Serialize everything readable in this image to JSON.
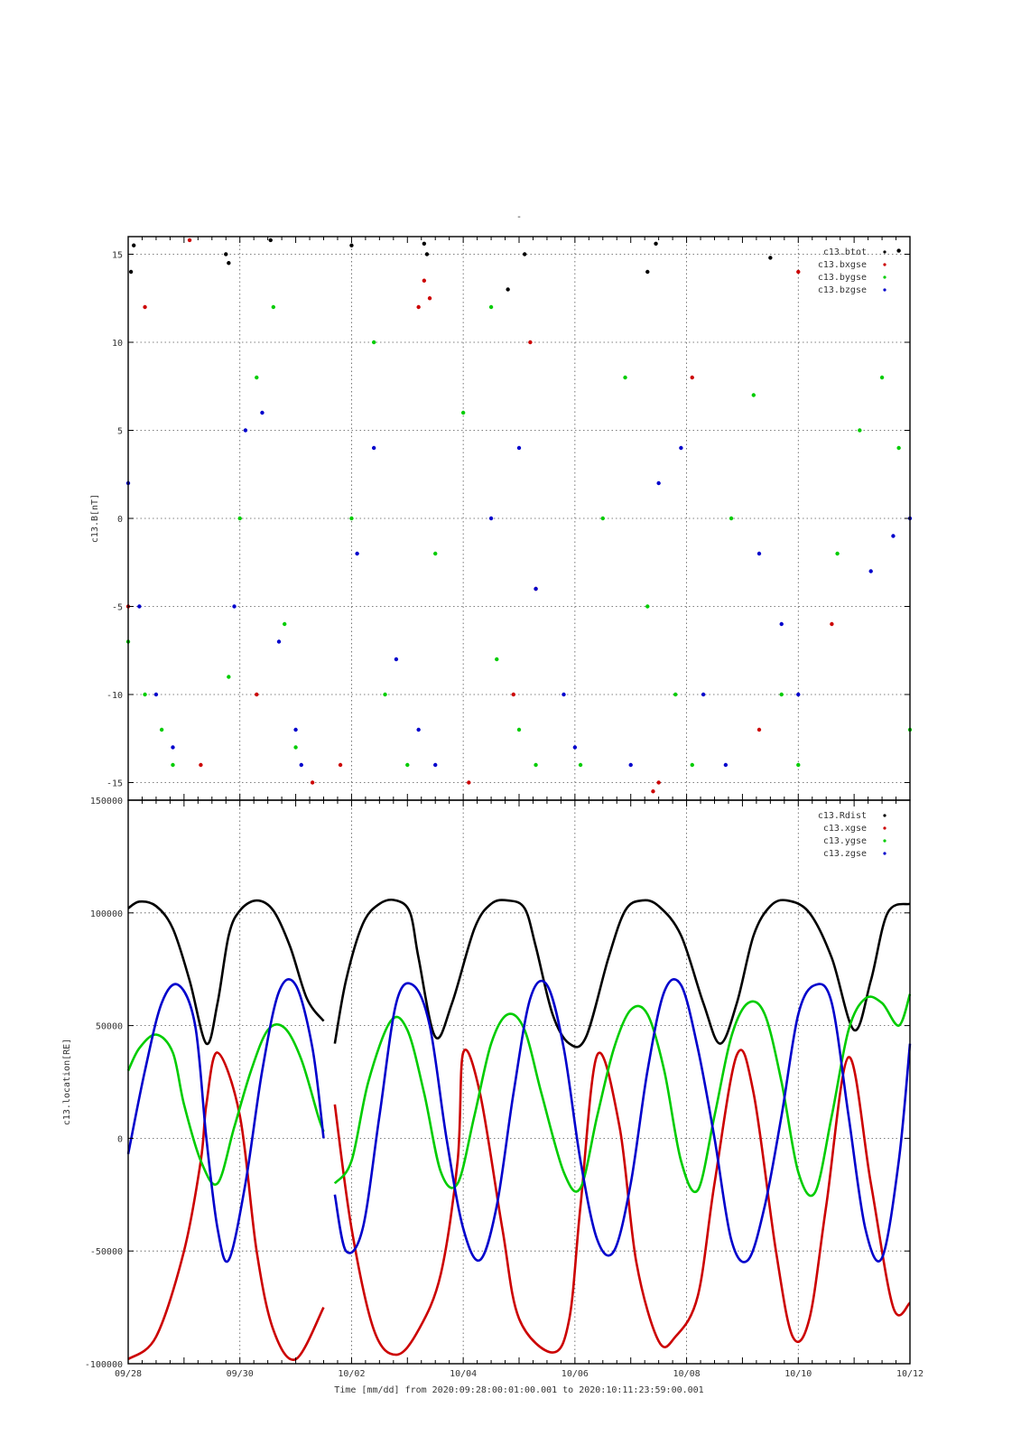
{
  "figure": {
    "title": "-",
    "xlabel": "Time [mm/dd]  from 2020:09:28:00:01:00.001  to  2020:10:11:23:59:00.001"
  },
  "colors": {
    "black": "#000000",
    "red": "#cc0000",
    "green": "#00cc00",
    "blue": "#0000cc"
  },
  "chart_data": [
    {
      "type": "scatter",
      "ylabel": "c13.B[nT]",
      "ylim": [
        -16,
        16
      ],
      "yticks": [
        -15,
        -10,
        -5,
        0,
        5,
        10,
        15
      ],
      "ytick_labels": [
        "-15",
        "-10",
        "-5",
        "0",
        "5",
        "10",
        "15"
      ],
      "x_range_days": [
        0,
        14
      ],
      "x_ticks": [
        "09/28",
        "09/30",
        "10/02",
        "10/04",
        "10/06",
        "10/08",
        "10/10",
        "10/12"
      ],
      "grid": true,
      "legend_position": "top-right",
      "series": [
        {
          "name": "c13.btot",
          "color": "#000000",
          "points": [
            [
              0.05,
              14
            ],
            [
              0.1,
              15.5
            ],
            [
              1.75,
              15
            ],
            [
              1.8,
              14.5
            ],
            [
              2.55,
              15.8
            ],
            [
              4.0,
              15.5
            ],
            [
              6.8,
              13
            ],
            [
              7.1,
              15
            ],
            [
              9.3,
              14
            ],
            [
              9.45,
              15.6
            ],
            [
              11.5,
              14.8
            ],
            [
              13.8,
              15.2
            ],
            [
              5.3,
              15.6
            ],
            [
              5.35,
              15
            ]
          ]
        },
        {
          "name": "c13.bxgse",
          "color": "#cc0000",
          "points": [
            [
              0.0,
              -5
            ],
            [
              0.3,
              12
            ],
            [
              1.1,
              15.8
            ],
            [
              1.3,
              -14
            ],
            [
              2.3,
              -10
            ],
            [
              3.3,
              -15
            ],
            [
              3.8,
              -14
            ],
            [
              5.2,
              12
            ],
            [
              5.3,
              13.5
            ],
            [
              5.4,
              12.5
            ],
            [
              6.1,
              -15
            ],
            [
              6.9,
              -10
            ],
            [
              7.2,
              10
            ],
            [
              7.3,
              -4
            ],
            [
              9.4,
              -15.5
            ],
            [
              9.5,
              -15
            ],
            [
              10.1,
              8
            ],
            [
              11.3,
              -12
            ],
            [
              12.0,
              14
            ],
            [
              12.6,
              -6
            ]
          ]
        },
        {
          "name": "c13.bygse",
          "color": "#00cc00",
          "points": [
            [
              0.0,
              -7
            ],
            [
              0.3,
              -10
            ],
            [
              0.6,
              -12
            ],
            [
              0.8,
              -14
            ],
            [
              1.8,
              -9
            ],
            [
              2.0,
              0
            ],
            [
              2.3,
              8
            ],
            [
              2.6,
              12
            ],
            [
              2.8,
              -6
            ],
            [
              3.0,
              -13
            ],
            [
              4.0,
              0
            ],
            [
              4.4,
              10
            ],
            [
              4.6,
              -10
            ],
            [
              5.0,
              -14
            ],
            [
              5.5,
              -2
            ],
            [
              6.0,
              6
            ],
            [
              6.5,
              12
            ],
            [
              6.6,
              -8
            ],
            [
              7.0,
              -12
            ],
            [
              7.3,
              -14
            ],
            [
              8.1,
              -14
            ],
            [
              8.5,
              0
            ],
            [
              8.9,
              8
            ],
            [
              9.3,
              -5
            ],
            [
              9.8,
              -10
            ],
            [
              10.1,
              -14
            ],
            [
              10.8,
              0
            ],
            [
              11.2,
              7
            ],
            [
              11.7,
              -10
            ],
            [
              12.0,
              -14
            ],
            [
              12.7,
              -2
            ],
            [
              13.1,
              5
            ],
            [
              13.5,
              8
            ],
            [
              13.8,
              4
            ],
            [
              14.0,
              -12
            ]
          ]
        },
        {
          "name": "c13.bzgse",
          "color": "#0000cc",
          "points": [
            [
              0.0,
              2
            ],
            [
              0.2,
              -5
            ],
            [
              0.5,
              -10
            ],
            [
              0.8,
              -13
            ],
            [
              1.9,
              -5
            ],
            [
              2.1,
              5
            ],
            [
              2.4,
              6
            ],
            [
              2.7,
              -7
            ],
            [
              3.0,
              -12
            ],
            [
              3.1,
              -14
            ],
            [
              4.1,
              -2
            ],
            [
              4.4,
              4
            ],
            [
              4.8,
              -8
            ],
            [
              5.2,
              -12
            ],
            [
              5.5,
              -14
            ],
            [
              6.5,
              0
            ],
            [
              7.0,
              4
            ],
            [
              7.3,
              -4
            ],
            [
              7.8,
              -10
            ],
            [
              8.0,
              -13
            ],
            [
              9.0,
              -14
            ],
            [
              9.5,
              2
            ],
            [
              9.9,
              4
            ],
            [
              10.3,
              -10
            ],
            [
              10.7,
              -14
            ],
            [
              11.3,
              -2
            ],
            [
              11.7,
              -6
            ],
            [
              12.0,
              -10
            ],
            [
              13.3,
              -3
            ],
            [
              13.7,
              -1
            ],
            [
              14.0,
              0
            ]
          ]
        }
      ]
    },
    {
      "type": "line",
      "ylabel": "c13.location[RE]",
      "ylim": [
        -100000,
        150000
      ],
      "yticks": [
        -100000,
        -50000,
        0,
        50000,
        100000,
        150000
      ],
      "ytick_labels": [
        "-100000",
        "-50000",
        "0",
        "50000",
        "100000",
        "150000"
      ],
      "x_range_days": [
        0,
        14
      ],
      "x_ticks": [
        "09/28",
        "09/30",
        "10/02",
        "10/04",
        "10/06",
        "10/08",
        "10/10",
        "10/12"
      ],
      "grid": true,
      "legend_position": "top-right",
      "data_gap_days": [
        3.5,
        3.7
      ],
      "series": [
        {
          "name": "c13.Rdist",
          "color": "#000000",
          "x": [
            0,
            0.2,
            0.5,
            0.8,
            1.1,
            1.4,
            1.6,
            1.8,
            2.0,
            2.3,
            2.6,
            2.9,
            3.2,
            3.5,
            3.7,
            3.9,
            4.2,
            4.5,
            4.8,
            5.05,
            5.2,
            5.5,
            5.8,
            6.2,
            6.5,
            6.8,
            7.1,
            7.3,
            7.6,
            7.9,
            8.2,
            8.6,
            8.9,
            9.2,
            9.5,
            9.9,
            10.3,
            10.6,
            10.9,
            11.2,
            11.5,
            11.8,
            12.2,
            12.6,
            13.0,
            13.3,
            13.6,
            14.0
          ],
          "y": [
            102000,
            105000,
            103000,
            93000,
            70000,
            42000,
            60000,
            90000,
            101000,
            105500,
            101000,
            85000,
            62000,
            52000,
            42000,
            70000,
            95000,
            104000,
            105500,
            100000,
            80000,
            45000,
            60000,
            93000,
            104000,
            105500,
            102000,
            85000,
            55000,
            42000,
            45000,
            80000,
            101000,
            105500,
            103000,
            90000,
            60000,
            42000,
            60000,
            90000,
            103000,
            105500,
            100000,
            80000,
            48000,
            70000,
            100000,
            104000
          ]
        },
        {
          "name": "c13.xgse",
          "color": "#cc0000",
          "x": [
            0,
            0.5,
            1.0,
            1.3,
            1.4,
            1.6,
            2.0,
            2.3,
            2.6,
            3.0,
            3.5,
            3.7,
            4.0,
            4.4,
            4.8,
            5.2,
            5.6,
            5.9,
            6.0,
            6.3,
            6.7,
            7.0,
            7.6,
            7.9,
            8.1,
            8.4,
            8.8,
            9.1,
            9.5,
            9.8,
            10.2,
            10.5,
            10.9,
            11.2,
            11.6,
            11.9,
            12.2,
            12.5,
            12.9,
            13.3,
            13.7,
            14.0
          ],
          "y": [
            -98000,
            -88000,
            -50000,
            -10000,
            15000,
            38000,
            10000,
            -50000,
            -85000,
            -98000,
            -75000,
            15000,
            -40000,
            -85000,
            -96000,
            -85000,
            -60000,
            -10000,
            38000,
            20000,
            -40000,
            -80000,
            -95000,
            -80000,
            -30000,
            37000,
            5000,
            -55000,
            -90000,
            -88000,
            -70000,
            -20000,
            37000,
            20000,
            -50000,
            -88000,
            -80000,
            -30000,
            36000,
            -20000,
            -75000,
            -73000
          ]
        },
        {
          "name": "c13.ygse",
          "color": "#00cc00",
          "x": [
            0,
            0.2,
            0.5,
            0.8,
            1.0,
            1.3,
            1.6,
            1.9,
            2.2,
            2.5,
            2.8,
            3.1,
            3.4,
            3.5,
            3.7,
            4.0,
            4.3,
            4.7,
            5.0,
            5.3,
            5.6,
            5.9,
            6.2,
            6.5,
            6.8,
            7.1,
            7.4,
            7.8,
            8.1,
            8.4,
            8.7,
            9.0,
            9.3,
            9.6,
            9.9,
            10.2,
            10.5,
            10.8,
            11.1,
            11.4,
            11.7,
            12.0,
            12.3,
            12.6,
            12.9,
            13.2,
            13.5,
            13.8,
            14.0
          ],
          "y": [
            30000,
            40000,
            46000,
            38000,
            15000,
            -10000,
            -20000,
            5000,
            30000,
            48000,
            49000,
            35000,
            10000,
            3000,
            -20000,
            -10000,
            25000,
            52000,
            48000,
            20000,
            -15000,
            -20000,
            10000,
            42000,
            55000,
            48000,
            20000,
            -15000,
            -22000,
            10000,
            40000,
            57000,
            55000,
            30000,
            -10000,
            -23000,
            10000,
            45000,
            60000,
            55000,
            25000,
            -15000,
            -24000,
            10000,
            48000,
            62000,
            60000,
            50000,
            64000
          ]
        },
        {
          "name": "c13.zgse",
          "color": "#0000cc",
          "x": [
            0,
            0.3,
            0.6,
            0.9,
            1.2,
            1.4,
            1.6,
            1.8,
            2.1,
            2.4,
            2.7,
            3.0,
            3.3,
            3.5,
            3.7,
            3.9,
            4.2,
            4.5,
            4.8,
            5.1,
            5.4,
            5.7,
            6.0,
            6.3,
            6.6,
            6.9,
            7.2,
            7.5,
            7.8,
            8.1,
            8.4,
            8.7,
            9.0,
            9.3,
            9.6,
            9.9,
            10.2,
            10.5,
            10.8,
            11.1,
            11.4,
            11.7,
            12.0,
            12.3,
            12.6,
            12.9,
            13.2,
            13.5,
            13.8,
            14.0
          ],
          "y": [
            -7000,
            30000,
            60000,
            68000,
            50000,
            0,
            -40000,
            -54000,
            -20000,
            30000,
            65000,
            68000,
            40000,
            0,
            -25000,
            -50000,
            -40000,
            10000,
            60000,
            68000,
            50000,
            0,
            -40000,
            -54000,
            -30000,
            20000,
            62000,
            68000,
            40000,
            -10000,
            -45000,
            -50000,
            -20000,
            30000,
            65000,
            68000,
            40000,
            0,
            -45000,
            -54000,
            -30000,
            10000,
            55000,
            68000,
            60000,
            10000,
            -40000,
            -53000,
            -10000,
            42000
          ]
        }
      ]
    }
  ]
}
